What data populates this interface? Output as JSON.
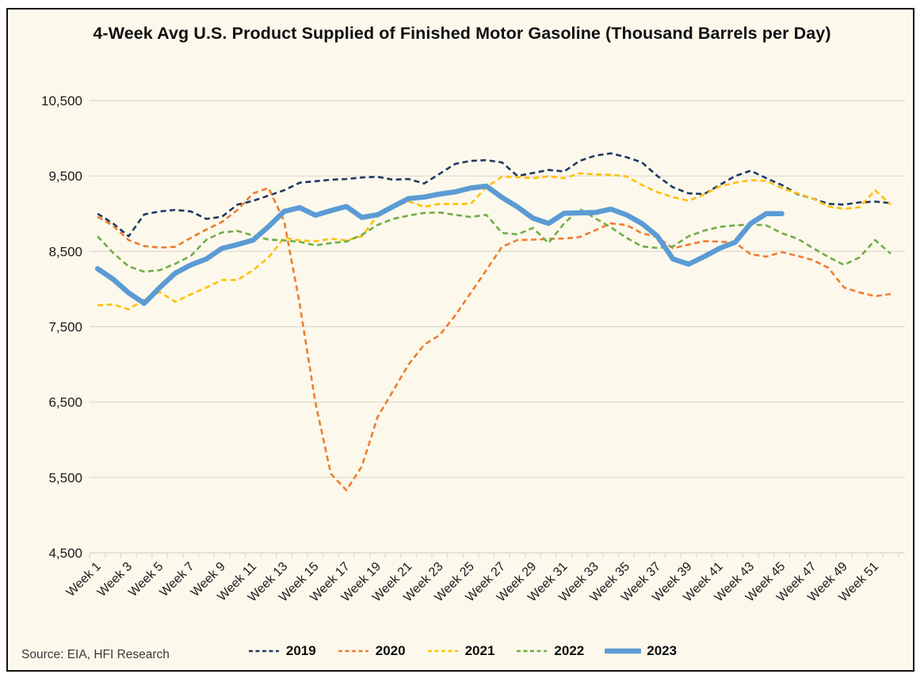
{
  "source_note": "Source: EIA, HFI Research",
  "colors": {
    "background": "#FCF8EB",
    "frame_border": "#141414",
    "gridline": "#DBD9D0",
    "axis_text": "#1a1a1a",
    "series_2019": "#1F3864",
    "series_2020": "#ED7D31",
    "series_2021": "#FFC000",
    "series_2022": "#70AD47",
    "series_2023": "#5B9BD5"
  },
  "chart_data": {
    "type": "line",
    "title": "4-Week Avg U.S. Product Supplied of Finished Motor Gasoline  (Thousand Barrels per Day)",
    "xlabel": "",
    "ylabel": "",
    "ylim": [
      4500,
      10500
    ],
    "y_ticks": [
      4500,
      5500,
      6500,
      7500,
      8500,
      9500,
      10500
    ],
    "y_tick_labels": [
      "4,500",
      "5,500",
      "6,500",
      "7,500",
      "8,500",
      "9,500",
      "10,500"
    ],
    "x_tick_labels": [
      "Week 1",
      "Week 3",
      "Week 5",
      "Week 7",
      "Week 9",
      "Week 11",
      "Week 13",
      "Week 15",
      "Week 17",
      "Week 19",
      "Week 21",
      "Week 23",
      "Week 25",
      "Week 27",
      "Week 29",
      "Week 31",
      "Week 33",
      "Week 35",
      "Week 37",
      "Week 39",
      "Week 41",
      "Week 43",
      "Week 45",
      "Week 47",
      "Week 49",
      "Week 51"
    ],
    "grid": "horizontal",
    "legend_position": "bottom",
    "series": [
      {
        "name": "2019",
        "color": "#1F3864",
        "style": "dashed",
        "width": 2.6,
        "values": [
          9000,
          8870,
          8700,
          8990,
          9030,
          9050,
          9030,
          8930,
          8960,
          9120,
          9170,
          9240,
          9310,
          9410,
          9430,
          9450,
          9460,
          9480,
          9490,
          9450,
          9460,
          9400,
          9530,
          9660,
          9700,
          9710,
          9680,
          9500,
          9540,
          9580,
          9560,
          9700,
          9770,
          9800,
          9750,
          9680,
          9500,
          9350,
          9270,
          9260,
          9380,
          9500,
          9570,
          9470,
          9380,
          9260,
          9200,
          9130,
          9120,
          9150,
          9160,
          9140
        ]
      },
      {
        "name": "2020",
        "color": "#ED7D31",
        "style": "dashed",
        "width": 2.6,
        "values": [
          8960,
          8840,
          8650,
          8570,
          8550,
          8560,
          8680,
          8790,
          8890,
          9050,
          9270,
          9340,
          8900,
          7800,
          6500,
          5550,
          5330,
          5650,
          6300,
          6650,
          7000,
          7260,
          7390,
          7650,
          7950,
          8250,
          8560,
          8650,
          8655,
          8665,
          8670,
          8690,
          8780,
          8870,
          8850,
          8740,
          8690,
          8540,
          8590,
          8635,
          8630,
          8615,
          8460,
          8430,
          8490,
          8440,
          8385,
          8280,
          8020,
          7955,
          7905,
          7935
        ]
      },
      {
        "name": "2021",
        "color": "#FFC000",
        "style": "dashed",
        "width": 2.6,
        "values": [
          7785,
          7795,
          7730,
          7860,
          7960,
          7830,
          7930,
          8020,
          8120,
          8120,
          8250,
          8420,
          8680,
          8645,
          8635,
          8665,
          8645,
          8700,
          8975,
          9080,
          9165,
          9090,
          9130,
          9130,
          9130,
          9350,
          9490,
          9485,
          9470,
          9495,
          9470,
          9535,
          9520,
          9515,
          9495,
          9380,
          9285,
          9220,
          9170,
          9255,
          9360,
          9410,
          9445,
          9435,
          9340,
          9270,
          9200,
          9095,
          9065,
          9085,
          9310,
          9120
        ]
      },
      {
        "name": "2022",
        "color": "#70AD47",
        "style": "dashed",
        "width": 2.6,
        "values": [
          8700,
          8480,
          8300,
          8230,
          8250,
          8335,
          8440,
          8655,
          8750,
          8770,
          8710,
          8655,
          8645,
          8625,
          8580,
          8610,
          8630,
          8720,
          8850,
          8930,
          8975,
          9010,
          9015,
          8985,
          8955,
          8985,
          8745,
          8725,
          8810,
          8610,
          8870,
          9060,
          8940,
          8820,
          8680,
          8565,
          8545,
          8565,
          8700,
          8775,
          8825,
          8845,
          8855,
          8845,
          8740,
          8670,
          8545,
          8425,
          8320,
          8420,
          8650,
          8470
        ]
      },
      {
        "name": "2023",
        "color": "#5B9BD5",
        "style": "solid",
        "width": 6.5,
        "values": [
          8270,
          8130,
          7950,
          7810,
          8020,
          8210,
          8320,
          8400,
          8540,
          8590,
          8650,
          8830,
          9030,
          9080,
          8980,
          9040,
          9095,
          8950,
          8985,
          9095,
          9200,
          9220,
          9260,
          9290,
          9340,
          9365,
          9215,
          9090,
          8940,
          8870,
          9005,
          9010,
          9015,
          9060,
          8985,
          8870,
          8700,
          8400,
          8330,
          8430,
          8540,
          8620,
          8870,
          9000,
          9000
        ]
      }
    ]
  }
}
